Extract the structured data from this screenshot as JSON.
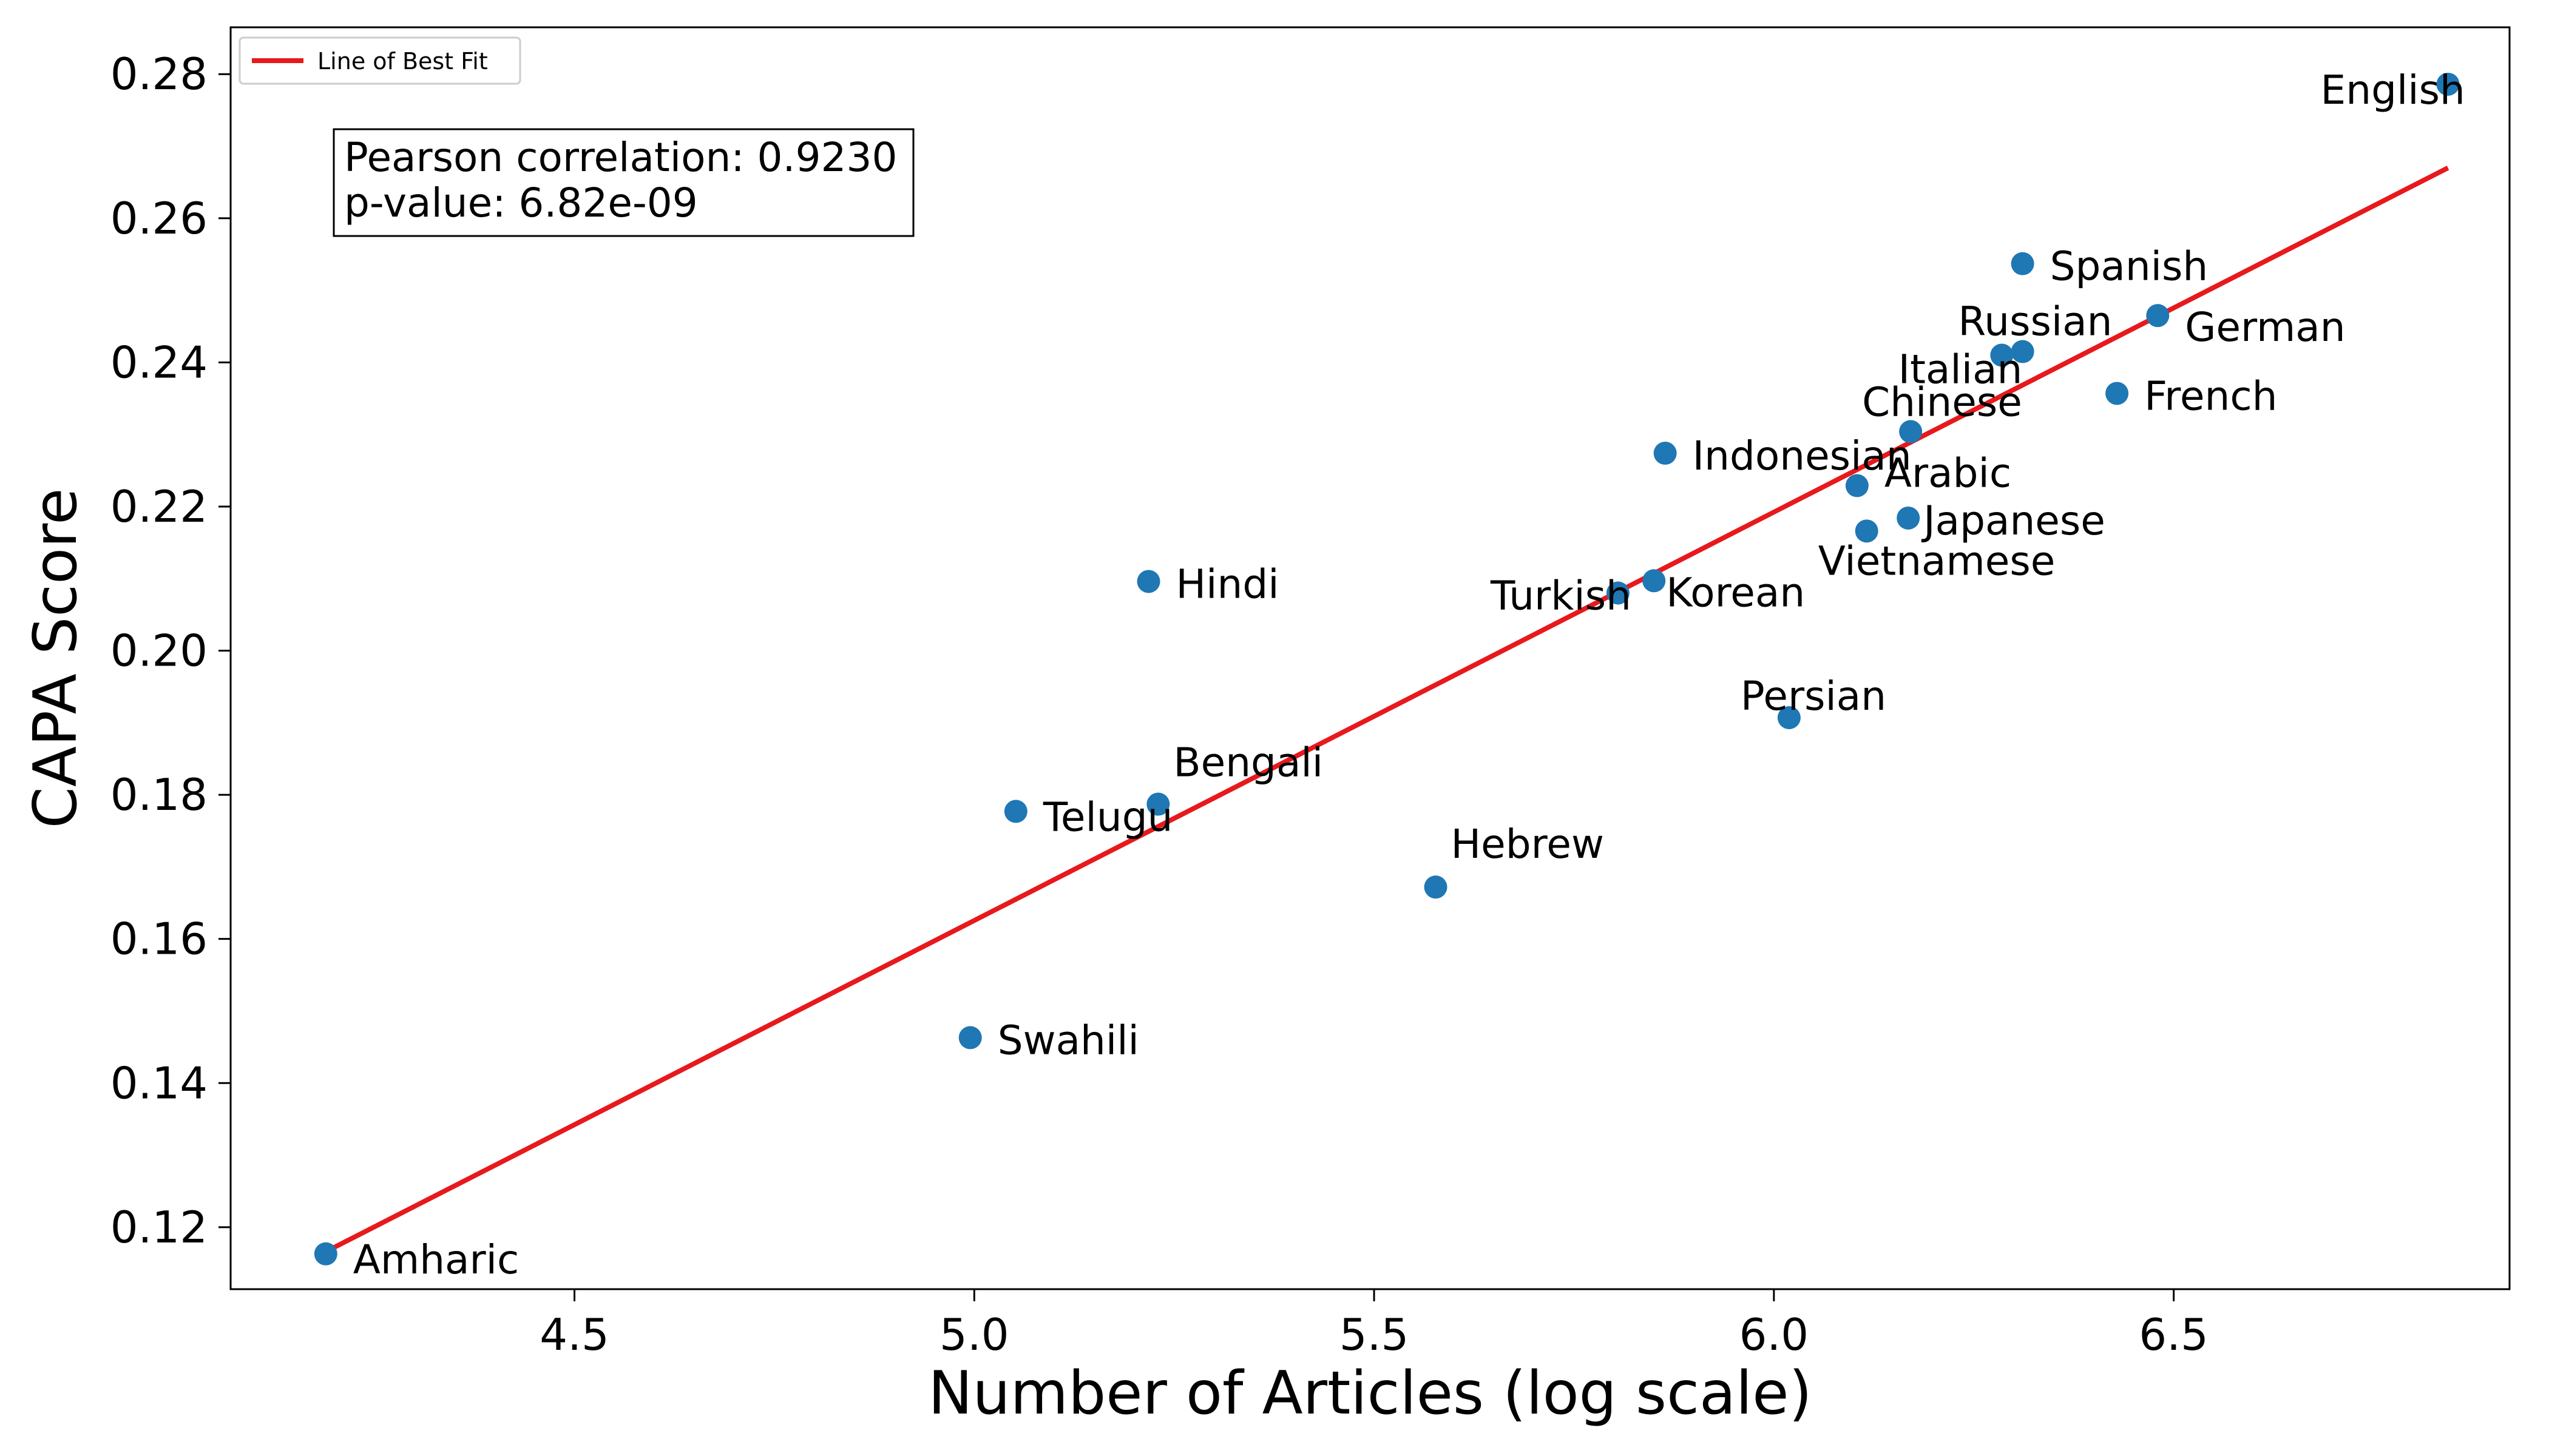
{
  "chart_data": {
    "type": "scatter",
    "title": "",
    "xlabel": "Number of Articles (log scale)",
    "ylabel": "CAPA Score",
    "xlim": [
      4.07,
      6.92
    ],
    "ylim": [
      0.1114,
      0.2865
    ],
    "xticks": [
      "4.5",
      "5.0",
      "5.5",
      "6.0",
      "6.5"
    ],
    "xtick_values": [
      4.5,
      5.0,
      5.5,
      6.0,
      6.5
    ],
    "yticks": [
      "0.12",
      "0.14",
      "0.16",
      "0.18",
      "0.20",
      "0.22",
      "0.24",
      "0.26",
      "0.28"
    ],
    "ytick_values": [
      0.12,
      0.14,
      0.16,
      0.18,
      0.2,
      0.22,
      0.24,
      0.26,
      0.28
    ],
    "point_color": "#1f77b4",
    "fit_color": "#e8191c",
    "points": [
      {
        "label": "English",
        "x": 6.843,
        "y": 0.2786
      },
      {
        "label": "Spanish",
        "x": 6.311,
        "y": 0.2537
      },
      {
        "label": "Russian",
        "x": 6.285,
        "y": 0.241
      },
      {
        "label": "Italian",
        "x": 6.311,
        "y": 0.2415
      },
      {
        "label": "German",
        "x": 6.48,
        "y": 0.2465
      },
      {
        "label": "French",
        "x": 6.429,
        "y": 0.2357
      },
      {
        "label": "Chinese",
        "x": 6.171,
        "y": 0.2304
      },
      {
        "label": "Indonesian",
        "x": 5.864,
        "y": 0.2274
      },
      {
        "label": "Arabic",
        "x": 6.104,
        "y": 0.2229
      },
      {
        "label": "Japanese",
        "x": 6.168,
        "y": 0.2184
      },
      {
        "label": "Vietnamese",
        "x": 6.116,
        "y": 0.2166
      },
      {
        "label": "Hindi",
        "x": 5.218,
        "y": 0.2096
      },
      {
        "label": "Turkish",
        "x": 5.805,
        "y": 0.208
      },
      {
        "label": "Korean",
        "x": 5.85,
        "y": 0.2097
      },
      {
        "label": "Persian",
        "x": 6.019,
        "y": 0.1907
      },
      {
        "label": "Bengali",
        "x": 5.23,
        "y": 0.1787
      },
      {
        "label": "Telugu",
        "x": 5.052,
        "y": 0.1777
      },
      {
        "label": "Hebrew",
        "x": 5.577,
        "y": 0.1672
      },
      {
        "label": "Swahili",
        "x": 4.995,
        "y": 0.1463
      },
      {
        "label": "Amharic",
        "x": 4.189,
        "y": 0.1163
      }
    ],
    "fit_line": {
      "x": [
        4.189,
        6.843
      ],
      "y": 0.1166,
      "y_end": 0.267
    },
    "legend": {
      "label": "Line of Best Fit",
      "position": "top-left"
    },
    "annotation": {
      "line1": "Pearson correlation: 0.9230",
      "line2": "p-value: 6.82e-09"
    }
  }
}
